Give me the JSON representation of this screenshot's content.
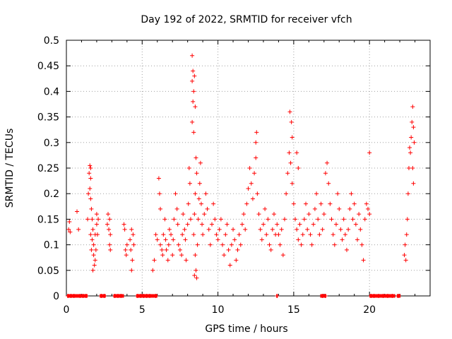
{
  "chart_data": {
    "type": "scatter",
    "title": "Day 192 of 2022, SRMTID for receiver vfch",
    "xlabel": "GPS time / hours",
    "ylabel": "SRMTID / TECUs",
    "xlim": [
      0,
      24
    ],
    "ylim": [
      0,
      0.5
    ],
    "x_ticks": [
      0,
      5,
      10,
      15,
      20
    ],
    "y_ticks": [
      0,
      0.05,
      0.1,
      0.15,
      0.2,
      0.25,
      0.3,
      0.35,
      0.4,
      0.45,
      0.5
    ],
    "x_tick_labels": [
      "0",
      "5",
      "10",
      "15",
      "20"
    ],
    "y_tick_labels": [
      "0",
      "0.05",
      "0.1",
      "0.15",
      "0.2",
      "0.25",
      "0.3",
      "0.35",
      "0.4",
      "0.45",
      "0.5"
    ],
    "grid": true,
    "marker": "+",
    "marker_color": "#ff0000",
    "series": [
      {
        "name": "SRMTID",
        "points": [
          [
            0.15,
            0.13
          ],
          [
            0.2,
            0.145
          ],
          [
            0.25,
            0.125
          ],
          [
            0.7,
            0.165
          ],
          [
            0.8,
            0.13
          ],
          [
            1.4,
            0.15
          ],
          [
            1.45,
            0.2
          ],
          [
            1.5,
            0.24
          ],
          [
            1.55,
            0.255
          ],
          [
            1.6,
            0.25
          ],
          [
            1.6,
            0.23
          ],
          [
            1.55,
            0.21
          ],
          [
            1.6,
            0.19
          ],
          [
            1.65,
            0.17
          ],
          [
            1.7,
            0.15
          ],
          [
            1.6,
            0.12
          ],
          [
            1.7,
            0.11
          ],
          [
            1.65,
            0.09
          ],
          [
            1.75,
            0.13
          ],
          [
            1.8,
            0.1
          ],
          [
            1.8,
            0.08
          ],
          [
            1.85,
            0.06
          ],
          [
            1.75,
            0.05
          ],
          [
            1.9,
            0.07
          ],
          [
            1.95,
            0.09
          ],
          [
            1.9,
            0.12
          ],
          [
            2.0,
            0.14
          ],
          [
            2.0,
            0.16
          ],
          [
            2.1,
            0.15
          ],
          [
            2.05,
            0.12
          ],
          [
            2.7,
            0.14
          ],
          [
            2.75,
            0.16
          ],
          [
            2.8,
            0.13
          ],
          [
            2.85,
            0.1
          ],
          [
            2.9,
            0.12
          ],
          [
            2.85,
            0.15
          ],
          [
            2.9,
            0.09
          ],
          [
            3.8,
            0.14
          ],
          [
            3.85,
            0.13
          ],
          [
            3.9,
            0.09
          ],
          [
            3.95,
            0.08
          ],
          [
            4.0,
            0.1
          ],
          [
            4.2,
            0.11
          ],
          [
            4.25,
            0.09
          ],
          [
            4.3,
            0.05
          ],
          [
            4.35,
            0.07
          ],
          [
            4.4,
            0.12
          ],
          [
            4.45,
            0.1
          ],
          [
            4.3,
            0.13
          ],
          [
            5.7,
            0.05
          ],
          [
            5.8,
            0.07
          ],
          [
            5.9,
            0.12
          ],
          [
            6.0,
            0.11
          ],
          [
            6.1,
            0.23
          ],
          [
            6.15,
            0.2
          ],
          [
            6.2,
            0.17
          ],
          [
            6.2,
            0.1
          ],
          [
            6.3,
            0.09
          ],
          [
            6.35,
            0.08
          ],
          [
            6.4,
            0.12
          ],
          [
            6.5,
            0.15
          ],
          [
            6.55,
            0.11
          ],
          [
            6.6,
            0.09
          ],
          [
            6.7,
            0.07
          ],
          [
            6.75,
            0.1
          ],
          [
            6.8,
            0.13
          ],
          [
            6.9,
            0.12
          ],
          [
            7.0,
            0.08
          ],
          [
            7.05,
            0.11
          ],
          [
            7.1,
            0.15
          ],
          [
            7.2,
            0.2
          ],
          [
            7.3,
            0.17
          ],
          [
            7.35,
            0.14
          ],
          [
            7.4,
            0.1
          ],
          [
            7.5,
            0.09
          ],
          [
            7.6,
            0.08
          ],
          [
            7.65,
            0.12
          ],
          [
            7.7,
            0.16
          ],
          [
            7.8,
            0.13
          ],
          [
            7.85,
            0.11
          ],
          [
            7.9,
            0.07
          ],
          [
            8.0,
            0.14
          ],
          [
            8.05,
            0.18
          ],
          [
            8.1,
            0.25
          ],
          [
            8.15,
            0.22
          ],
          [
            8.2,
            0.15
          ],
          [
            8.3,
            0.47
          ],
          [
            8.35,
            0.44
          ],
          [
            8.3,
            0.42
          ],
          [
            8.4,
            0.4
          ],
          [
            8.35,
            0.38
          ],
          [
            8.3,
            0.34
          ],
          [
            8.4,
            0.32
          ],
          [
            8.5,
            0.37
          ],
          [
            8.45,
            0.43
          ],
          [
            8.55,
            0.27
          ],
          [
            8.6,
            0.24
          ],
          [
            8.5,
            0.2
          ],
          [
            8.45,
            0.16
          ],
          [
            8.4,
            0.12
          ],
          [
            8.5,
            0.08
          ],
          [
            8.55,
            0.05
          ],
          [
            8.6,
            0.035
          ],
          [
            8.45,
            0.04
          ],
          [
            8.65,
            0.1
          ],
          [
            8.7,
            0.15
          ],
          [
            8.75,
            0.19
          ],
          [
            8.8,
            0.22
          ],
          [
            8.85,
            0.26
          ],
          [
            8.9,
            0.18
          ],
          [
            8.95,
            0.14
          ],
          [
            9.0,
            0.12
          ],
          [
            9.1,
            0.16
          ],
          [
            9.2,
            0.2
          ],
          [
            9.3,
            0.17
          ],
          [
            9.4,
            0.13
          ],
          [
            9.5,
            0.1
          ],
          [
            9.6,
            0.14
          ],
          [
            9.7,
            0.18
          ],
          [
            9.8,
            0.15
          ],
          [
            9.9,
            0.12
          ],
          [
            10.0,
            0.11
          ],
          [
            10.1,
            0.13
          ],
          [
            10.2,
            0.15
          ],
          [
            10.3,
            0.1
          ],
          [
            10.4,
            0.08
          ],
          [
            10.5,
            0.12
          ],
          [
            10.6,
            0.14
          ],
          [
            10.7,
            0.09
          ],
          [
            10.8,
            0.06
          ],
          [
            10.9,
            0.1
          ],
          [
            11.0,
            0.13
          ],
          [
            11.1,
            0.11
          ],
          [
            11.2,
            0.07
          ],
          [
            11.3,
            0.09
          ],
          [
            11.4,
            0.12
          ],
          [
            11.5,
            0.1
          ],
          [
            11.6,
            0.14
          ],
          [
            11.7,
            0.16
          ],
          [
            11.8,
            0.13
          ],
          [
            11.9,
            0.18
          ],
          [
            12.0,
            0.21
          ],
          [
            12.1,
            0.25
          ],
          [
            12.2,
            0.22
          ],
          [
            12.3,
            0.19
          ],
          [
            12.4,
            0.24
          ],
          [
            12.5,
            0.3
          ],
          [
            12.55,
            0.32
          ],
          [
            12.5,
            0.27
          ],
          [
            12.6,
            0.2
          ],
          [
            12.7,
            0.16
          ],
          [
            12.8,
            0.13
          ],
          [
            12.9,
            0.11
          ],
          [
            13.0,
            0.14
          ],
          [
            13.1,
            0.17
          ],
          [
            13.2,
            0.12
          ],
          [
            13.3,
            0.15
          ],
          [
            13.4,
            0.1
          ],
          [
            13.5,
            0.09
          ],
          [
            13.6,
            0.13
          ],
          [
            13.7,
            0.16
          ],
          [
            13.8,
            0.12
          ],
          [
            13.9,
            0.14
          ],
          [
            14.0,
            0.12
          ],
          [
            14.1,
            0.1
          ],
          [
            14.2,
            0.13
          ],
          [
            14.3,
            0.08
          ],
          [
            14.4,
            0.15
          ],
          [
            14.5,
            0.2
          ],
          [
            14.6,
            0.24
          ],
          [
            14.7,
            0.28
          ],
          [
            14.75,
            0.36
          ],
          [
            14.85,
            0.34
          ],
          [
            14.9,
            0.31
          ],
          [
            14.8,
            0.26
          ],
          [
            14.9,
            0.22
          ],
          [
            15.0,
            0.18
          ],
          [
            15.1,
            0.15
          ],
          [
            15.2,
            0.28
          ],
          [
            15.3,
            0.25
          ],
          [
            15.2,
            0.13
          ],
          [
            15.3,
            0.11
          ],
          [
            15.4,
            0.14
          ],
          [
            15.5,
            0.1
          ],
          [
            15.6,
            0.12
          ],
          [
            15.7,
            0.15
          ],
          [
            15.8,
            0.18
          ],
          [
            15.9,
            0.13
          ],
          [
            16.0,
            0.16
          ],
          [
            16.1,
            0.12
          ],
          [
            16.2,
            0.1
          ],
          [
            16.3,
            0.14
          ],
          [
            16.4,
            0.17
          ],
          [
            16.5,
            0.2
          ],
          [
            16.6,
            0.15
          ],
          [
            16.7,
            0.12
          ],
          [
            16.8,
            0.18
          ],
          [
            16.9,
            0.13
          ],
          [
            17.0,
            0.16
          ],
          [
            17.1,
            0.24
          ],
          [
            17.2,
            0.26
          ],
          [
            17.3,
            0.22
          ],
          [
            17.4,
            0.18
          ],
          [
            17.5,
            0.15
          ],
          [
            17.6,
            0.12
          ],
          [
            17.7,
            0.1
          ],
          [
            17.8,
            0.14
          ],
          [
            17.9,
            0.2
          ],
          [
            18.0,
            0.17
          ],
          [
            18.1,
            0.13
          ],
          [
            18.2,
            0.11
          ],
          [
            18.3,
            0.15
          ],
          [
            18.4,
            0.12
          ],
          [
            18.5,
            0.09
          ],
          [
            18.6,
            0.13
          ],
          [
            18.7,
            0.17
          ],
          [
            18.8,
            0.2
          ],
          [
            18.9,
            0.15
          ],
          [
            19.0,
            0.18
          ],
          [
            19.1,
            0.14
          ],
          [
            19.2,
            0.11
          ],
          [
            19.3,
            0.16
          ],
          [
            19.4,
            0.13
          ],
          [
            19.5,
            0.1
          ],
          [
            19.6,
            0.07
          ],
          [
            19.7,
            0.15
          ],
          [
            19.8,
            0.18
          ],
          [
            19.9,
            0.17
          ],
          [
            20.0,
            0.28
          ],
          [
            20.0,
            0.16
          ],
          [
            22.3,
            0.08
          ],
          [
            22.35,
            0.1
          ],
          [
            22.4,
            0.07
          ],
          [
            22.45,
            0.12
          ],
          [
            22.5,
            0.15
          ],
          [
            22.55,
            0.2
          ],
          [
            22.6,
            0.25
          ],
          [
            22.65,
            0.29
          ],
          [
            22.7,
            0.28
          ],
          [
            22.75,
            0.31
          ],
          [
            22.8,
            0.34
          ],
          [
            22.85,
            0.37
          ],
          [
            22.9,
            0.33
          ],
          [
            22.85,
            0.25
          ],
          [
            22.9,
            0.22
          ],
          [
            22.95,
            0.3
          ],
          [
            0.1,
            0
          ],
          [
            0.3,
            0
          ],
          [
            0.5,
            0
          ],
          [
            0.9,
            0
          ],
          [
            1.1,
            0
          ],
          [
            1.3,
            0
          ],
          [
            2.3,
            0
          ],
          [
            2.5,
            0
          ],
          [
            3.2,
            0
          ],
          [
            3.4,
            0
          ],
          [
            3.6,
            0
          ],
          [
            4.7,
            0
          ],
          [
            4.9,
            0
          ],
          [
            5.1,
            0
          ],
          [
            5.3,
            0
          ],
          [
            5.5,
            0
          ],
          [
            5.9,
            0
          ],
          [
            13.9,
            0
          ],
          [
            16.9,
            0
          ],
          [
            17.1,
            0
          ],
          [
            20.1,
            0
          ],
          [
            20.3,
            0
          ],
          [
            20.6,
            0
          ],
          [
            20.9,
            0
          ],
          [
            21.2,
            0
          ],
          [
            21.5,
            0
          ],
          [
            21.9,
            0
          ]
        ]
      }
    ],
    "zero_line_bars": [
      [
        0.05,
        1.4
      ],
      [
        2.2,
        2.6
      ],
      [
        3.1,
        3.8
      ],
      [
        4.6,
        6.0
      ],
      [
        13.85,
        13.95
      ],
      [
        16.75,
        17.15
      ],
      [
        20.0,
        21.7
      ],
      [
        21.8,
        22.05
      ]
    ]
  }
}
